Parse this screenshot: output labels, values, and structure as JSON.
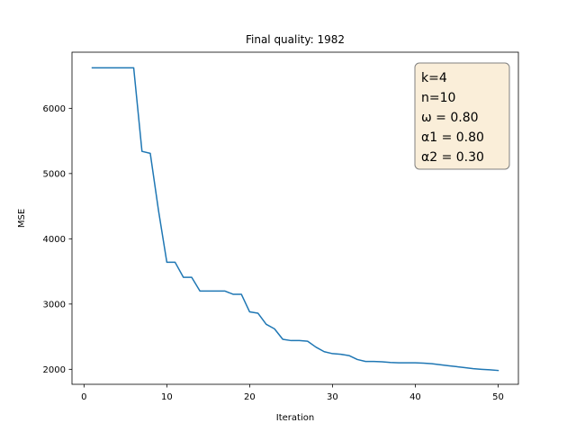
{
  "chart_data": {
    "type": "line",
    "title": "Final quality: 1982",
    "xlabel": "Iteration",
    "ylabel": "MSE",
    "xlim": [
      -1.45,
      52.45
    ],
    "ylim": [
      1770,
      6860
    ],
    "xticks": [
      0,
      10,
      20,
      30,
      40,
      50
    ],
    "yticks": [
      2000,
      3000,
      4000,
      5000,
      6000
    ],
    "grid": false,
    "series": [
      {
        "color": "#1f77b4",
        "x": [
          1,
          2,
          3,
          4,
          5,
          6,
          7,
          8,
          9,
          10,
          11,
          12,
          13,
          14,
          15,
          16,
          17,
          18,
          19,
          20,
          21,
          22,
          23,
          24,
          25,
          26,
          27,
          28,
          29,
          30,
          31,
          32,
          33,
          34,
          35,
          36,
          37,
          38,
          39,
          40,
          41,
          42,
          43,
          44,
          45,
          46,
          47,
          48,
          49,
          50
        ],
        "y": [
          6620,
          6620,
          6620,
          6620,
          6620,
          6620,
          5340,
          5310,
          4430,
          3640,
          3640,
          3410,
          3410,
          3200,
          3200,
          3200,
          3200,
          3150,
          3150,
          2880,
          2860,
          2690,
          2620,
          2460,
          2440,
          2440,
          2430,
          2340,
          2270,
          2240,
          2230,
          2210,
          2150,
          2120,
          2120,
          2115,
          2105,
          2100,
          2100,
          2100,
          2095,
          2085,
          2070,
          2055,
          2040,
          2025,
          2010,
          2000,
          1992,
          1982
        ]
      }
    ],
    "annotation": {
      "lines": [
        "k=4",
        "n=10",
        "ω = 0.80",
        "α1 = 0.80",
        "α2 = 0.30"
      ],
      "box_fill": "#f5deb3",
      "box_edge": "#808080"
    }
  }
}
